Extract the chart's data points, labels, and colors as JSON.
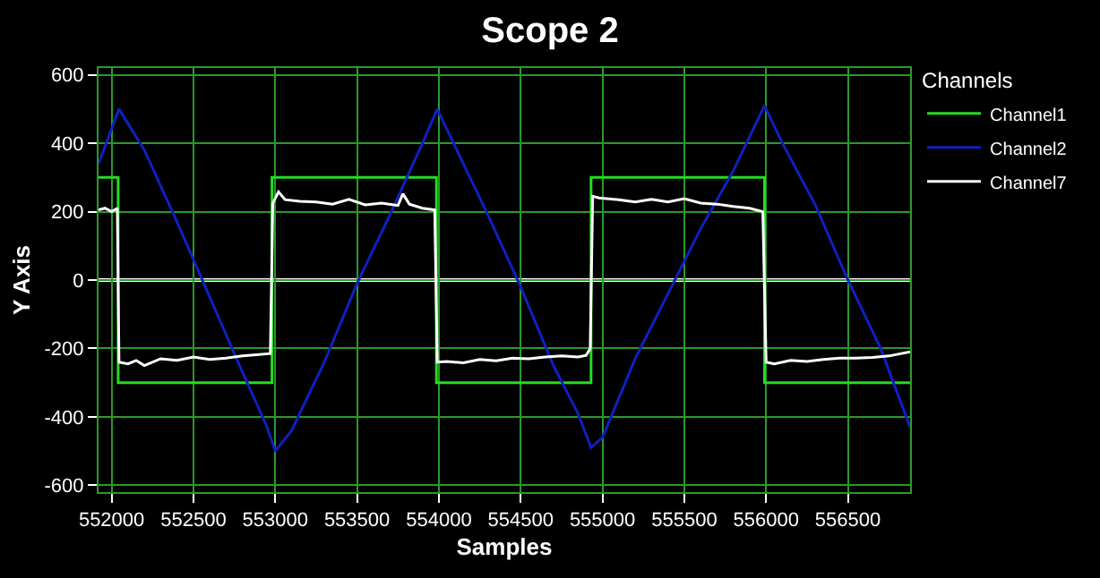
{
  "chart_data": {
    "type": "line",
    "title": "Scope 2",
    "xlabel": "Samples",
    "ylabel": "Y Axis",
    "legend_title": "Channels",
    "legend": "top right",
    "grid": true,
    "marker": "none",
    "line_style": "solid",
    "xlim": [
      551920,
      556880
    ],
    "ylim": [
      -620,
      620
    ],
    "xticks": [
      552000,
      552500,
      553000,
      553500,
      554000,
      554500,
      555000,
      555500,
      556000,
      556500
    ],
    "yticks": [
      -600,
      -400,
      -200,
      0,
      200,
      400,
      600
    ],
    "ref_lines": [
      {
        "axis": "y",
        "value": 0,
        "color": "#ffffff"
      }
    ],
    "series": [
      {
        "name": "Channel1",
        "color": "#22dd22",
        "x": [
          551920,
          552040,
          552040,
          552980,
          552980,
          553985,
          553985,
          554930,
          554930,
          555990,
          555990,
          556880
        ],
        "values": [
          300,
          300,
          -300,
          -300,
          300,
          300,
          -300,
          -300,
          300,
          300,
          -300,
          -300
        ]
      },
      {
        "name": "Channel2",
        "color": "#1020c0",
        "x": [
          551920,
          552045,
          552200,
          552400,
          552600,
          552800,
          552950,
          553000,
          553100,
          553300,
          553500,
          553700,
          553900,
          553990,
          554100,
          554300,
          554500,
          554700,
          554850,
          554930,
          555000,
          555200,
          555400,
          555600,
          555800,
          555990,
          556100,
          556300,
          556500,
          556700,
          556880
        ],
        "values": [
          340,
          500,
          380,
          170,
          -50,
          -270,
          -430,
          -500,
          -440,
          -240,
          -10,
          190,
          400,
          500,
          390,
          190,
          -20,
          -250,
          -390,
          -490,
          -460,
          -230,
          -40,
          150,
          320,
          510,
          400,
          220,
          0,
          -200,
          -430
        ]
      },
      {
        "name": "Channel7",
        "color": "#ffffff",
        "x": [
          551920,
          551960,
          552000,
          552035,
          552045,
          552100,
          552150,
          552200,
          552300,
          552400,
          552500,
          552600,
          552700,
          552800,
          552900,
          552970,
          552985,
          553020,
          553060,
          553150,
          553250,
          553350,
          553450,
          553550,
          553650,
          553750,
          553780,
          553820,
          553900,
          553975,
          553990,
          554050,
          554150,
          554250,
          554350,
          554450,
          554550,
          554650,
          554750,
          554850,
          554900,
          554925,
          554940,
          554980,
          555100,
          555200,
          555300,
          555400,
          555500,
          555600,
          555700,
          555800,
          555900,
          555980,
          556000,
          556050,
          556150,
          556250,
          556350,
          556450,
          556550,
          556650,
          556750,
          556880
        ],
        "values": [
          205,
          210,
          200,
          210,
          -240,
          -245,
          -235,
          -250,
          -230,
          -235,
          -225,
          -232,
          -228,
          -222,
          -218,
          -215,
          225,
          258,
          235,
          230,
          228,
          222,
          236,
          220,
          225,
          218,
          252,
          222,
          210,
          205,
          -240,
          -238,
          -242,
          -232,
          -236,
          -228,
          -230,
          -225,
          -222,
          -225,
          -220,
          -200,
          245,
          240,
          235,
          228,
          236,
          228,
          238,
          225,
          222,
          215,
          210,
          200,
          -240,
          -245,
          -235,
          -238,
          -232,
          -228,
          -228,
          -226,
          -222,
          -210
        ]
      }
    ]
  }
}
